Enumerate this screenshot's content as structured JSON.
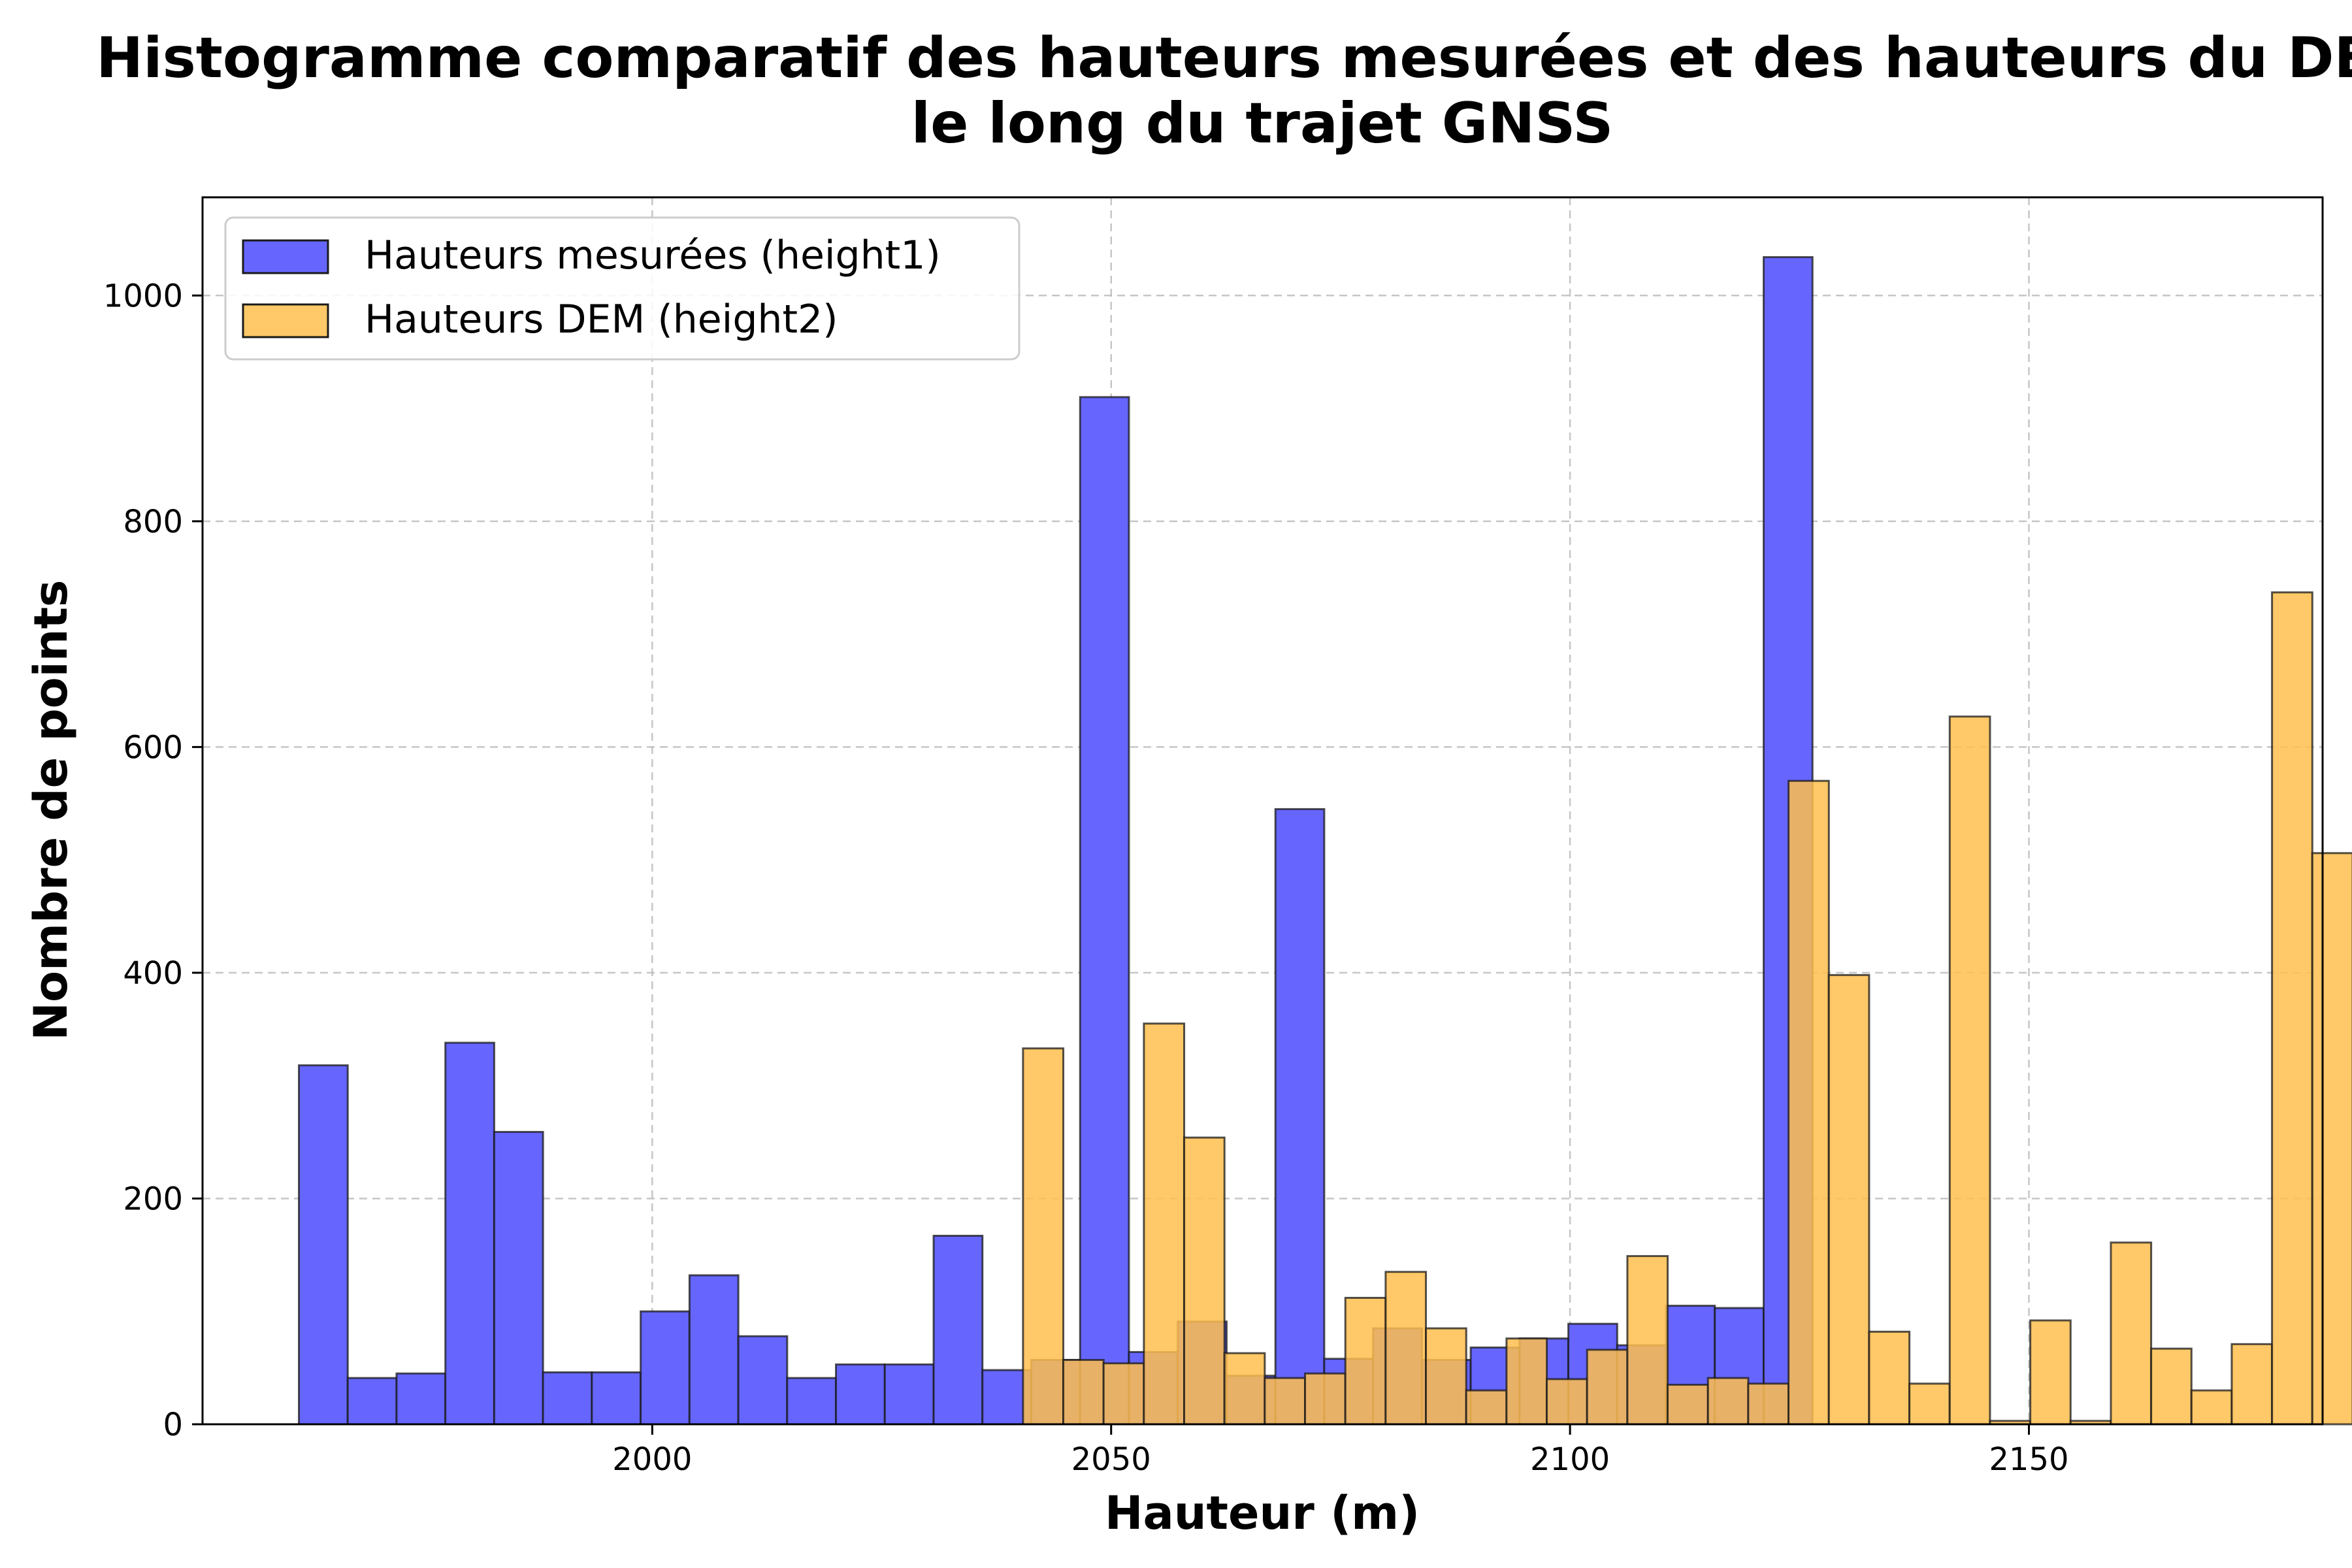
{
  "chart_data": {
    "type": "bar",
    "subtype": "overlapping-histogram",
    "title": "Histogramme comparatif des hauteurs mesurées et des hauteurs du DEM le long du trajet GNSS",
    "title_lines": [
      "Histogramme comparatif des hauteurs mesurées et des hauteurs du DEM",
      "le long du trajet GNSS"
    ],
    "xlabel": "Hauteur (m)",
    "ylabel": "Nombre de points",
    "xlim": [
      1951,
      2182
    ],
    "ylim": [
      0,
      1087
    ],
    "x_ticks": [
      2000,
      2050,
      2100,
      2150
    ],
    "y_ticks": [
      0,
      200,
      400,
      600,
      800,
      1000
    ],
    "grid": true,
    "legend_position": "top-left",
    "series": [
      {
        "name": "Hauteurs mesurées (height1)",
        "color": "#6666ff",
        "opacity": 1.0,
        "bin_start": 1961.5,
        "bin_width": 5.32,
        "values": [
          318,
          41,
          45,
          338,
          259,
          46,
          46,
          100,
          132,
          78,
          41,
          53,
          53,
          167,
          48,
          57,
          910,
          64,
          91,
          43,
          545,
          58,
          85,
          57,
          68,
          76,
          89,
          70,
          105,
          103,
          1034
        ]
      },
      {
        "name": "Hauteurs DEM (height2)",
        "color": "#ffbe4d",
        "opacity": 0.85,
        "bin_start": 2040.4,
        "bin_width": 4.39,
        "values": [
          333,
          57,
          54,
          355,
          254,
          63,
          41,
          45,
          112,
          135,
          85,
          30,
          76,
          40,
          66,
          149,
          35,
          41,
          36,
          570,
          398,
          82,
          36,
          627,
          3,
          92,
          3,
          161,
          67,
          30,
          71,
          737,
          506
        ]
      }
    ]
  }
}
